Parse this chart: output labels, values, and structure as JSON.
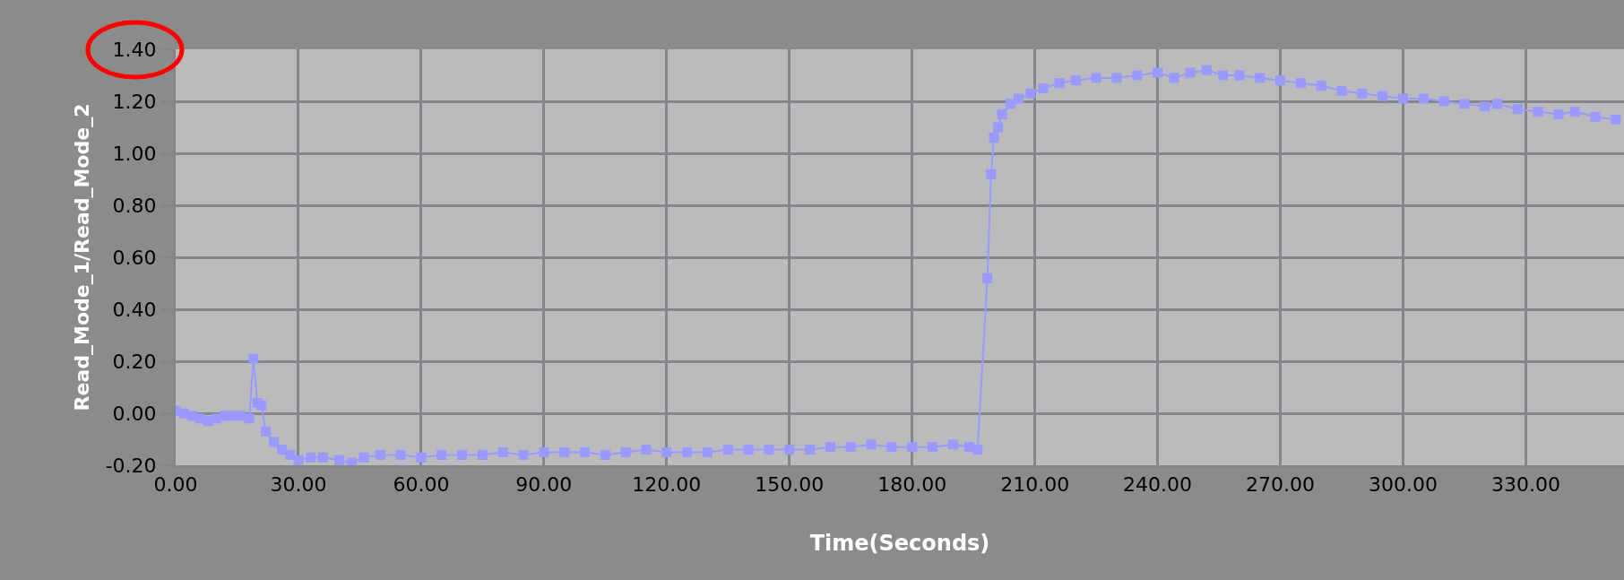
{
  "chart_data": {
    "type": "line",
    "xlabel": "Time(Seconds)",
    "ylabel": "Read_Mode_1/Read_Mode_2",
    "grid": true,
    "marker": "square",
    "line_style": "solid",
    "xlim": [
      0,
      354
    ],
    "ylim": [
      -0.2,
      1.4
    ],
    "xticks": [
      {
        "value": 0,
        "label": "0.00"
      },
      {
        "value": 30,
        "label": "30.00"
      },
      {
        "value": 60,
        "label": "60.00"
      },
      {
        "value": 90,
        "label": "90.00"
      },
      {
        "value": 120,
        "label": "120.00"
      },
      {
        "value": 150,
        "label": "150.00"
      },
      {
        "value": 180,
        "label": "180.00"
      },
      {
        "value": 210,
        "label": "210.00"
      },
      {
        "value": 240,
        "label": "240.00"
      },
      {
        "value": 270,
        "label": "270.00"
      },
      {
        "value": 300,
        "label": "300.00"
      },
      {
        "value": 330,
        "label": "330.00"
      }
    ],
    "yticks": [
      {
        "value": -0.2,
        "label": "-0.20"
      },
      {
        "value": 0,
        "label": "0.00"
      },
      {
        "value": 0.2,
        "label": "0.20"
      },
      {
        "value": 0.4,
        "label": "0.40"
      },
      {
        "value": 0.6,
        "label": "0.60"
      },
      {
        "value": 0.8,
        "label": "0.80"
      },
      {
        "value": 1,
        "label": "1.00"
      },
      {
        "value": 1.2,
        "label": "1.20"
      },
      {
        "value": 1.4,
        "label": "1.40"
      }
    ],
    "x": [
      0,
      2,
      4,
      6,
      8,
      10,
      12,
      14,
      16,
      18,
      19,
      20,
      21,
      22,
      24,
      26,
      28,
      30,
      33,
      36,
      40,
      43,
      46,
      50,
      55,
      60,
      65,
      70,
      75,
      80,
      85,
      90,
      95,
      100,
      105,
      110,
      115,
      120,
      125,
      130,
      135,
      140,
      145,
      150,
      155,
      160,
      165,
      170,
      175,
      180,
      185,
      190,
      194,
      196,
      198.4,
      199.3,
      200,
      201,
      202,
      204,
      206,
      209,
      212,
      216,
      220,
      225,
      230,
      235,
      240,
      244,
      248,
      252,
      256,
      260,
      265,
      270,
      275,
      280,
      285,
      290,
      295,
      300,
      305,
      310,
      315,
      320,
      323,
      328,
      333,
      338,
      342,
      347,
      352
    ],
    "series": [
      {
        "color": "#9999ff",
        "values": [
          0.01,
          0.0,
          -0.01,
          -0.02,
          -0.03,
          -0.02,
          -0.01,
          -0.01,
          -0.01,
          -0.02,
          0.21,
          0.04,
          0.03,
          -0.07,
          -0.11,
          -0.14,
          -0.16,
          -0.18,
          -0.17,
          -0.17,
          -0.18,
          -0.19,
          -0.17,
          -0.16,
          -0.16,
          -0.17,
          -0.16,
          -0.16,
          -0.16,
          -0.15,
          -0.16,
          -0.15,
          -0.15,
          -0.15,
          -0.16,
          -0.15,
          -0.14,
          -0.15,
          -0.15,
          -0.15,
          -0.14,
          -0.14,
          -0.14,
          -0.14,
          -0.14,
          -0.13,
          -0.13,
          -0.12,
          -0.13,
          -0.13,
          -0.13,
          -0.12,
          -0.13,
          -0.14,
          0.52,
          0.92,
          1.06,
          1.1,
          1.15,
          1.19,
          1.21,
          1.23,
          1.25,
          1.27,
          1.28,
          1.29,
          1.29,
          1.3,
          1.31,
          1.29,
          1.31,
          1.32,
          1.3,
          1.3,
          1.29,
          1.28,
          1.27,
          1.26,
          1.24,
          1.23,
          1.22,
          1.21,
          1.21,
          1.2,
          1.19,
          1.18,
          1.19,
          1.17,
          1.16,
          1.15,
          1.16,
          1.14,
          1.13
        ]
      }
    ]
  }
}
